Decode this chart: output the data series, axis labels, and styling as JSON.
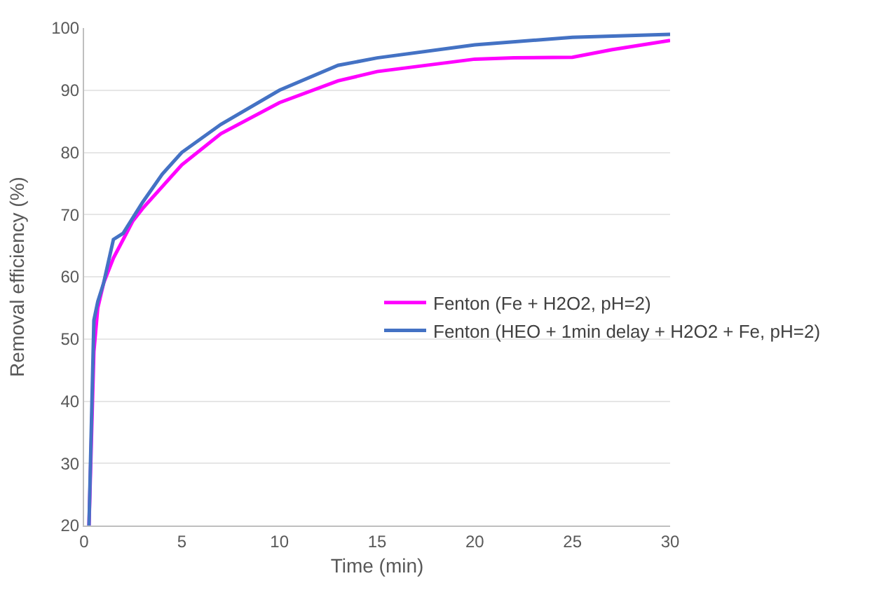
{
  "chart_data": {
    "type": "line",
    "xlabel": "Time (min)",
    "ylabel": "Removal efficiency (%)",
    "xlim": [
      0,
      30
    ],
    "xticks": [
      0,
      5,
      10,
      15,
      20,
      25,
      30
    ],
    "ylim": [
      20,
      100
    ],
    "yticks": [
      20,
      30,
      40,
      50,
      60,
      70,
      80,
      90,
      100
    ],
    "grid": "y",
    "legend": "right",
    "marker": "none",
    "line_style": "solid",
    "series": [
      {
        "name": "Fenton (Fe + H2O2, pH=2)",
        "color": "#ff00ff",
        "x": [
          0.25,
          0.5,
          0.7,
          1,
          1.5,
          2,
          2.5,
          3,
          4,
          5,
          7,
          10,
          13,
          15,
          20,
          22,
          25,
          27,
          30
        ],
        "values": [
          20,
          48,
          55,
          59,
          63,
          66,
          69,
          71,
          74.5,
          78,
          83,
          88,
          91.5,
          93,
          95,
          95.2,
          95.3,
          96.5,
          98
        ]
      },
      {
        "name": "Fenton (HEO + 1min delay + H2O2 + Fe, pH=2)",
        "color": "#4472c4",
        "x": [
          0.25,
          0.5,
          0.7,
          1,
          1.5,
          2,
          2.5,
          3,
          4,
          5,
          7,
          10,
          13,
          15,
          20,
          25,
          30
        ],
        "values": [
          20,
          53,
          56,
          59,
          66,
          67,
          69.5,
          72,
          76.5,
          80,
          84.5,
          90,
          94,
          95.2,
          97.3,
          98.5,
          99
        ]
      }
    ]
  }
}
